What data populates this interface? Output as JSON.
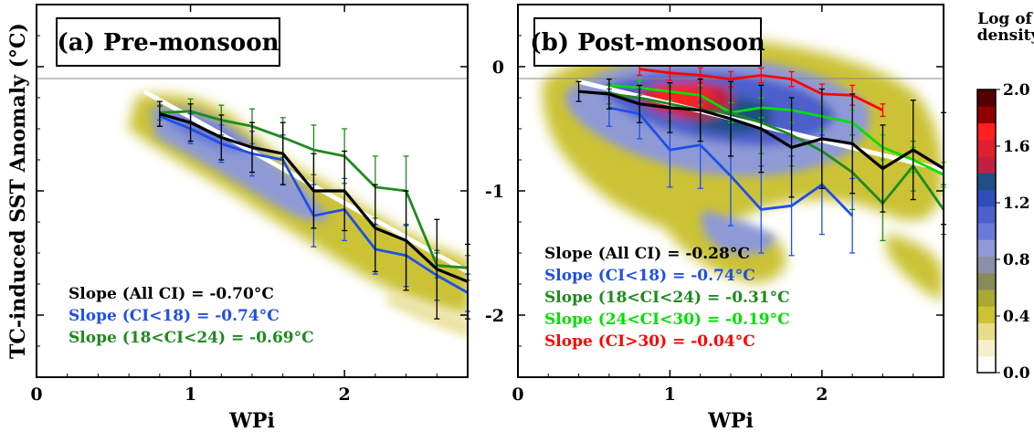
{
  "y_axis_label": "TC-induced SST Anomaly (°C)",
  "colorbar": {
    "title_lines": [
      "Log of",
      "density"
    ],
    "ticks": [
      "2.0",
      "1.6",
      "1.2",
      "0.8",
      "0.4",
      "0.0"
    ],
    "range": [
      0,
      2
    ],
    "colors": [
      "#ffffff",
      "#f5efcc",
      "#e6dc8a",
      "#cbc235",
      "#aaa830",
      "#8a8a5a",
      "#8a90a8",
      "#8e9ad6",
      "#6b7ad8",
      "#4e5fcc",
      "#2f4dbb",
      "#1f4f86",
      "#c02040",
      "#e02030",
      "#ff2020",
      "#900000",
      "#550000"
    ]
  },
  "colors": {
    "all_ci": "#000000",
    "ci_lt_18": "#1f4fe8",
    "ci_18_24": "#1e8a1e",
    "ci_24_30": "#00e000",
    "ci_gt_30": "#ff0000",
    "fit_line": "#ffffff"
  },
  "chart_data": [
    {
      "type": "line",
      "panel_title": "(a) Pre-monsoon",
      "xlabel": "WPi",
      "ylabel": "TC-induced SST Anomaly (°C)",
      "xlim": [
        0,
        2.8
      ],
      "ylim": [
        -2.5,
        0.5
      ],
      "xticks": [
        "0",
        "1",
        "2"
      ],
      "yticks": [
        "0",
        "-1",
        "-2"
      ],
      "slope_labels": [
        {
          "text": "Slope (All CI) = -0.70°C",
          "series": "all"
        },
        {
          "text": "Slope (CI<18) = -0.74°C",
          "series": "ci_lt_18"
        },
        {
          "text": "Slope (18<CI<24) = -0.69°C",
          "series": "ci_18_24"
        }
      ],
      "fit": {
        "x": [
          0.7,
          2.8
        ],
        "y": [
          -0.2,
          -1.65
        ]
      },
      "series": [
        {
          "key": "all",
          "x": [
            0.8,
            1.0,
            1.2,
            1.4,
            1.6,
            1.8,
            2.0,
            2.2,
            2.4,
            2.6,
            2.8
          ],
          "y": [
            -0.38,
            -0.45,
            -0.57,
            -0.65,
            -0.7,
            -1.0,
            -1.0,
            -1.3,
            -1.4,
            -1.63,
            -1.73
          ],
          "err": [
            0.1,
            0.15,
            0.18,
            0.2,
            0.25,
            0.3,
            0.32,
            0.35,
            0.4,
            0.4,
            0.3
          ]
        },
        {
          "key": "ci_lt_18",
          "x": [
            0.8,
            1.0,
            1.2,
            1.4,
            1.6,
            1.8,
            2.0,
            2.2,
            2.4,
            2.6,
            2.8
          ],
          "y": [
            -0.4,
            -0.5,
            -0.62,
            -0.7,
            -0.75,
            -1.2,
            -1.15,
            -1.47,
            -1.52,
            -1.68,
            -1.82
          ],
          "err": [
            0.08,
            0.12,
            0.15,
            0.18,
            0.2,
            0.25,
            0.25,
            0.2,
            0.25,
            0.2,
            0.15
          ]
        },
        {
          "key": "ci_18_24",
          "x": [
            0.8,
            1.0,
            1.2,
            1.4,
            1.6,
            1.8,
            2.0,
            2.2,
            2.4,
            2.6,
            2.8
          ],
          "y": [
            -0.37,
            -0.36,
            -0.43,
            -0.48,
            -0.57,
            -0.67,
            -0.72,
            -0.97,
            -1.0,
            -1.6,
            -1.62
          ],
          "err": [
            0.06,
            0.1,
            0.12,
            0.14,
            0.16,
            0.2,
            0.22,
            0.25,
            0.28,
            0.1,
            0.1
          ]
        }
      ]
    },
    {
      "type": "line",
      "panel_title": "(b) Post-monsoon",
      "xlabel": "WPi",
      "ylabel": "",
      "xlim": [
        0,
        2.8
      ],
      "ylim": [
        -2.5,
        0.5
      ],
      "xticks": [
        "0",
        "1",
        "2"
      ],
      "yticks": [
        "0",
        "-1",
        "-2"
      ],
      "slope_labels": [
        {
          "text": "Slope (All CI) = -0.28°C",
          "series": "all"
        },
        {
          "text": "Slope (CI<18) = -0.74°C",
          "series": "ci_lt_18"
        },
        {
          "text": "Slope (18<CI<24) = -0.31°C",
          "series": "ci_18_24"
        },
        {
          "text": "Slope (24<CI<30) = -0.19°C",
          "series": "ci_24_30"
        },
        {
          "text": "Slope (CI>30) = -0.04°C",
          "series": "ci_gt_30"
        }
      ],
      "fit": {
        "x": [
          0.4,
          2.8
        ],
        "y": [
          -0.12,
          -0.83
        ]
      },
      "series": [
        {
          "key": "all",
          "x": [
            0.4,
            0.6,
            0.8,
            1.0,
            1.2,
            1.4,
            1.6,
            1.8,
            2.0,
            2.2,
            2.4,
            2.6,
            2.8
          ],
          "y": [
            -0.2,
            -0.22,
            -0.3,
            -0.33,
            -0.35,
            -0.42,
            -0.5,
            -0.65,
            -0.58,
            -0.62,
            -0.82,
            -0.67,
            -0.82
          ],
          "err": [
            0.08,
            0.12,
            0.15,
            0.2,
            0.25,
            0.3,
            0.35,
            0.4,
            0.4,
            0.4,
            0.35,
            0.4,
            0.45
          ]
        },
        {
          "key": "ci_lt_18",
          "x": [
            0.6,
            0.8,
            1.0,
            1.2,
            1.4,
            1.6,
            1.8,
            2.0,
            2.2
          ],
          "y": [
            -0.33,
            -0.38,
            -0.67,
            -0.63,
            -0.88,
            -1.15,
            -1.12,
            -0.95,
            -1.2
          ],
          "err": [
            0.15,
            0.2,
            0.3,
            0.35,
            0.4,
            0.35,
            0.4,
            0.4,
            0.3
          ]
        },
        {
          "key": "ci_18_24",
          "x": [
            0.6,
            0.8,
            1.0,
            1.2,
            1.4,
            1.6,
            1.8,
            2.0,
            2.2,
            2.4,
            2.6,
            2.8
          ],
          "y": [
            -0.22,
            -0.25,
            -0.3,
            -0.35,
            -0.37,
            -0.45,
            -0.55,
            -0.68,
            -0.85,
            -1.1,
            -0.8,
            -1.15
          ],
          "err": [
            0.08,
            0.1,
            0.14,
            0.18,
            0.2,
            0.25,
            0.25,
            0.3,
            0.3,
            0.3,
            0.2,
            0.2
          ]
        },
        {
          "key": "ci_24_30",
          "x": [
            0.6,
            0.8,
            1.0,
            1.2,
            1.4,
            1.6,
            1.8,
            2.0,
            2.2,
            2.4,
            2.6,
            2.8
          ],
          "y": [
            -0.15,
            -0.17,
            -0.2,
            -0.23,
            -0.37,
            -0.33,
            -0.35,
            -0.4,
            -0.45,
            -0.65,
            -0.75,
            -0.87
          ],
          "err": [
            0.05,
            0.06,
            0.07,
            0.08,
            0.08,
            0.08,
            0.1,
            0.1,
            0.1,
            0.1,
            0.1,
            0.1
          ]
        },
        {
          "key": "ci_gt_30",
          "x": [
            0.8,
            1.0,
            1.2,
            1.4,
            1.6,
            1.8,
            2.0,
            2.2,
            2.4
          ],
          "y": [
            -0.02,
            -0.05,
            -0.07,
            -0.1,
            -0.07,
            -0.1,
            -0.22,
            -0.23,
            -0.35
          ],
          "err": [
            0.05,
            0.06,
            0.06,
            0.06,
            0.06,
            0.06,
            0.08,
            0.08,
            0.05
          ]
        }
      ]
    }
  ]
}
